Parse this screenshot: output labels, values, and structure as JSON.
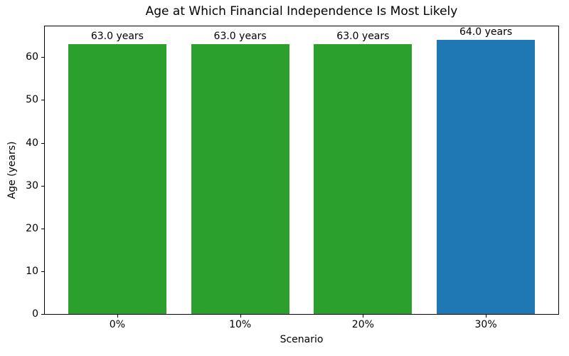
{
  "chart_data": {
    "type": "bar",
    "title": "Age at Which Financial Independence Is Most Likely",
    "xlabel": "Scenario",
    "ylabel": "Age (years)",
    "categories": [
      "0%",
      "10%",
      "20%",
      "30%"
    ],
    "values": [
      63.0,
      63.0,
      63.0,
      64.0
    ],
    "bar_labels": [
      "63.0 years",
      "63.0 years",
      "63.0 years",
      "64.0 years"
    ],
    "bar_colors": [
      "#2ca02c",
      "#2ca02c",
      "#2ca02c",
      "#1f77b4"
    ],
    "ylim": [
      0,
      67.2
    ],
    "yticks": [
      0,
      10,
      20,
      30,
      40,
      50,
      60
    ],
    "grid": false,
    "legend": null,
    "background_color": "#ffffff",
    "axis_color": "#000000"
  }
}
